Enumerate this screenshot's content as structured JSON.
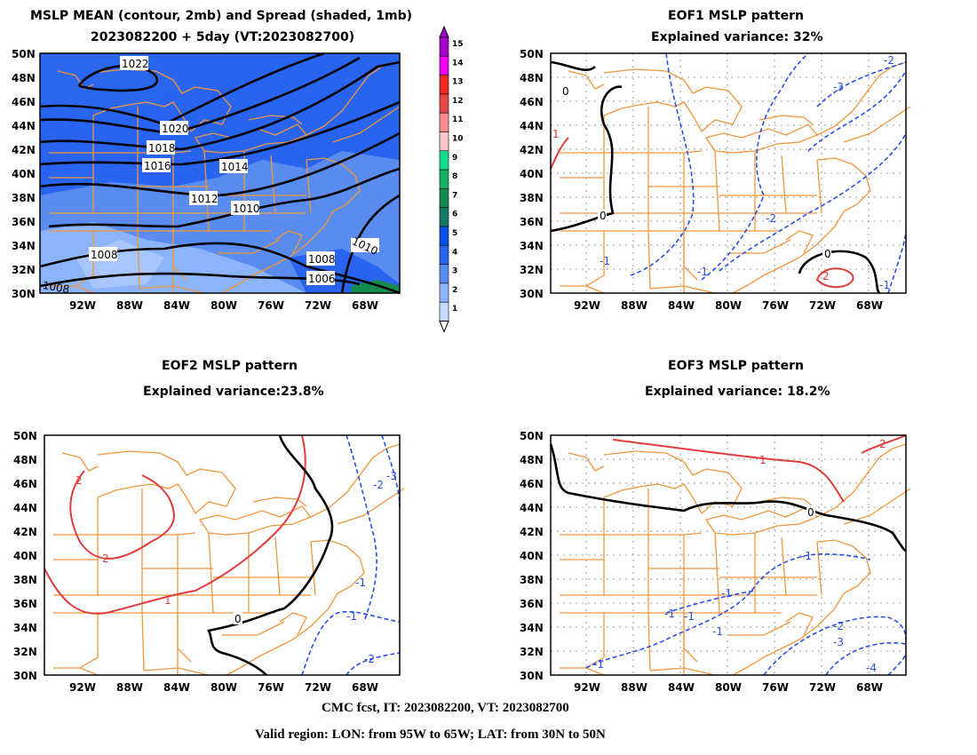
{
  "panels": {
    "mean": {
      "title_line1": "MSLP MEAN (contour, 2mb) and Spread (shaded, 1mb)",
      "title_line2": "2023082200 + 5day (VT:2023082700)",
      "contour_labels": [
        "1022",
        "1020",
        "1018",
        "1016",
        "1014",
        "1012",
        "1010",
        "1010",
        "1008",
        "1008",
        "1006",
        "1008"
      ]
    },
    "eof1": {
      "title_line1": "EOF1 MSLP pattern",
      "title_line2": "Explained variance: 32%",
      "contour_labels": [
        "0",
        "0",
        "0",
        "-1",
        "-2",
        "-3",
        "-2",
        "-1",
        "-1",
        "1",
        "2"
      ]
    },
    "eof2": {
      "title_line1": "EOF2 MSLP pattern",
      "title_line2": "Explained variance:23.8%",
      "contour_labels": [
        "2",
        "2",
        "1",
        "0",
        "-1",
        "-2",
        "-3",
        "-1",
        "-2"
      ]
    },
    "eof3": {
      "title_line1": "EOF3 MSLP pattern",
      "title_line2": "Explained variance: 18.2%",
      "contour_labels": [
        "2",
        "1",
        "0",
        "-1",
        "-1",
        "-1",
        "-1",
        "-1",
        "-2",
        "-3",
        "-4",
        "-1"
      ]
    }
  },
  "axes": {
    "lat_labels": [
      "50N",
      "48N",
      "46N",
      "44N",
      "42N",
      "40N",
      "38N",
      "36N",
      "34N",
      "32N",
      "30N"
    ],
    "lon_labels": [
      "92W",
      "88W",
      "84W",
      "80W",
      "76W",
      "72W",
      "68W"
    ]
  },
  "colorbar": {
    "levels": [
      "15",
      "14",
      "13",
      "12",
      "11",
      "10",
      "9",
      "8",
      "7",
      "6",
      "5",
      "4",
      "3",
      "2",
      "1"
    ],
    "colors": [
      "#a000c8",
      "#f000f0",
      "#f02828",
      "#e64646",
      "#fa8c8c",
      "#fac8c8",
      "#14dc8c",
      "#14b464",
      "#148c50",
      "#147864",
      "#0a50e6",
      "#2864f0",
      "#5a8cf0",
      "#8cb4fa",
      "#c8dcff"
    ]
  },
  "footer": {
    "line1": "CMC fcst, IT: 2023082200, VT: 2023082700",
    "line2": "Valid region: LON: from 95W to 65W; LAT: from 30N to 50N"
  },
  "colors": {
    "positive_contour": "#e03c3c",
    "negative_contour": "#2850e6",
    "zero_contour": "#000000",
    "map_lines": "#f0963c",
    "grid": "#999999"
  }
}
